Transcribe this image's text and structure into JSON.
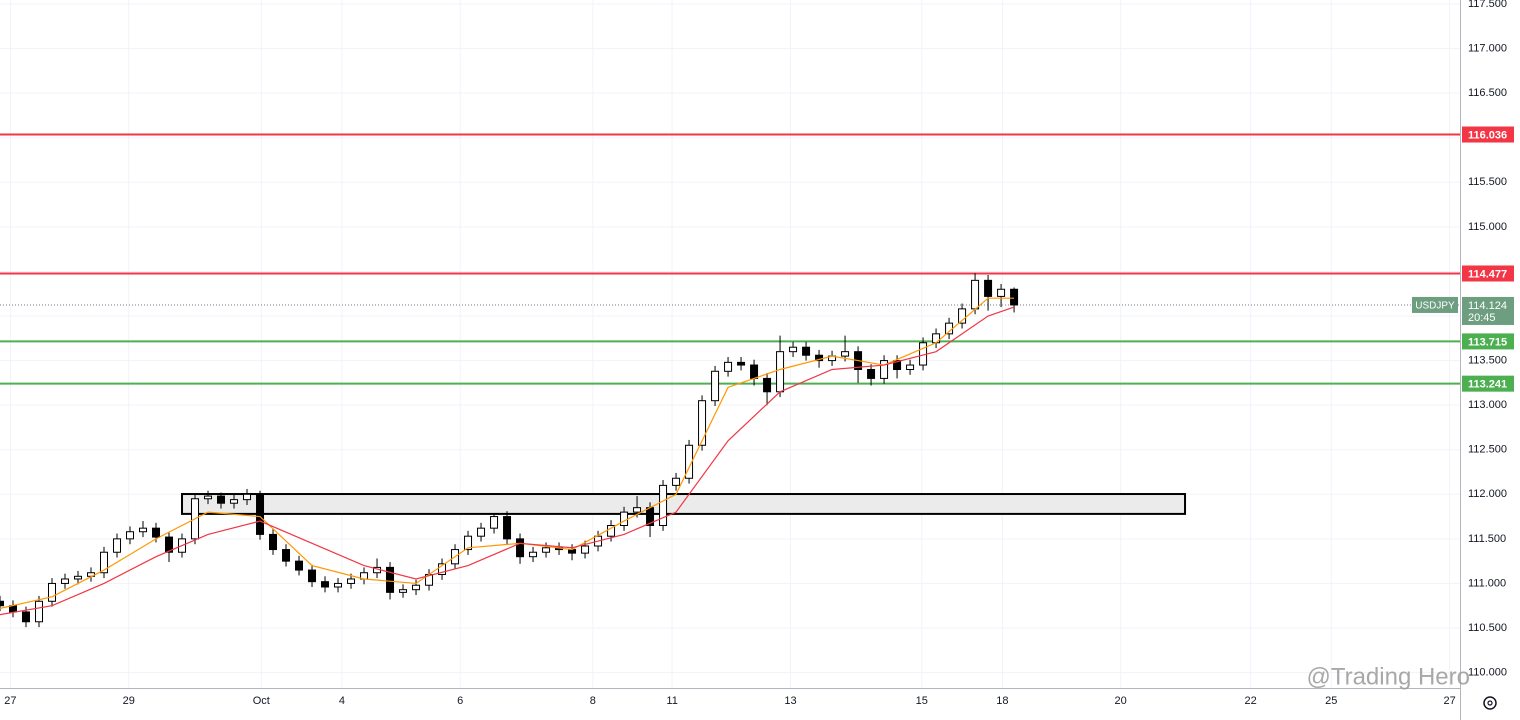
{
  "chart_data": {
    "type": "candlestick",
    "symbol": "USDJPY",
    "x": [
      0,
      1,
      2,
      3,
      4,
      5,
      6,
      7,
      8,
      9,
      10,
      11,
      12,
      13,
      14,
      15,
      16,
      17,
      18,
      19,
      20,
      21,
      22,
      23,
      24,
      25,
      26,
      27,
      28,
      29,
      30,
      31,
      32,
      33,
      34,
      35,
      36,
      37,
      38,
      39,
      40,
      41,
      42,
      43,
      44,
      45,
      46,
      47,
      48,
      49,
      50,
      51,
      52,
      53,
      54,
      55,
      56,
      57,
      58,
      59,
      60,
      61,
      62,
      63,
      64,
      65,
      66,
      67,
      68,
      69,
      70,
      71,
      72,
      73,
      74,
      75,
      76,
      77,
      78
    ],
    "open": [
      110.8,
      110.75,
      110.68,
      110.57,
      110.8,
      111.0,
      111.05,
      111.08,
      111.12,
      111.35,
      111.5,
      111.58,
      111.62,
      111.52,
      111.35,
      111.5,
      111.95,
      111.98,
      111.9,
      111.94,
      112.0,
      111.55,
      111.38,
      111.25,
      111.15,
      111.02,
      110.96,
      111.0,
      111.05,
      111.12,
      111.18,
      110.9,
      110.93,
      110.98,
      111.1,
      111.22,
      111.38,
      111.53,
      111.62,
      111.75,
      111.5,
      111.3,
      111.35,
      111.4,
      111.38,
      111.34,
      111.42,
      111.53,
      111.65,
      111.8,
      111.85,
      111.65,
      112.1,
      112.18,
      112.55,
      113.05,
      113.38,
      113.48,
      113.45,
      113.3,
      113.15,
      113.6,
      113.65,
      113.56,
      113.5,
      113.55,
      113.6,
      113.4,
      113.3,
      113.5,
      113.4,
      113.45,
      113.7,
      113.8,
      113.92,
      114.08,
      114.4,
      114.22,
      114.3
    ],
    "high": [
      110.86,
      110.81,
      110.74,
      110.86,
      111.06,
      111.11,
      111.14,
      111.18,
      111.41,
      111.56,
      111.64,
      111.7,
      111.68,
      111.58,
      111.56,
      112.01,
      112.04,
      112.02,
      112.0,
      112.06,
      112.04,
      111.61,
      111.44,
      111.31,
      111.21,
      111.08,
      111.06,
      111.11,
      111.18,
      111.28,
      111.24,
      110.99,
      111.04,
      111.16,
      111.28,
      111.44,
      111.59,
      111.68,
      111.79,
      111.81,
      111.56,
      111.41,
      111.46,
      111.46,
      111.44,
      111.48,
      111.59,
      111.71,
      111.86,
      111.98,
      111.91,
      112.16,
      112.24,
      112.61,
      113.11,
      113.44,
      113.54,
      113.54,
      113.51,
      113.36,
      113.78,
      113.71,
      113.71,
      113.62,
      113.61,
      113.78,
      113.66,
      113.46,
      113.56,
      113.56,
      113.51,
      113.76,
      113.86,
      113.98,
      114.14,
      114.48,
      114.46,
      114.36,
      114.32
    ],
    "low": [
      110.69,
      110.62,
      110.51,
      110.51,
      110.74,
      110.94,
      110.99,
      111.02,
      111.06,
      111.29,
      111.44,
      111.52,
      111.46,
      111.24,
      111.29,
      111.44,
      111.89,
      111.84,
      111.84,
      111.88,
      111.49,
      111.32,
      111.19,
      111.09,
      110.96,
      110.9,
      110.9,
      110.94,
      110.99,
      111.06,
      110.82,
      110.84,
      110.87,
      110.92,
      111.04,
      111.16,
      111.32,
      111.47,
      111.56,
      111.44,
      111.22,
      111.24,
      111.29,
      111.32,
      111.26,
      111.28,
      111.36,
      111.47,
      111.59,
      111.74,
      111.52,
      111.59,
      112.04,
      112.12,
      112.49,
      112.99,
      113.32,
      113.39,
      113.22,
      113.0,
      113.09,
      113.54,
      113.5,
      113.42,
      113.44,
      113.49,
      113.25,
      113.22,
      113.24,
      113.3,
      113.34,
      113.39,
      113.64,
      113.74,
      113.86,
      114.02,
      114.06,
      114.1,
      114.04
    ],
    "close": [
      110.75,
      110.68,
      110.57,
      110.8,
      111.0,
      111.05,
      111.08,
      111.12,
      111.35,
      111.5,
      111.58,
      111.62,
      111.52,
      111.35,
      111.5,
      111.95,
      111.98,
      111.9,
      111.94,
      112.0,
      111.55,
      111.38,
      111.25,
      111.15,
      111.02,
      110.96,
      111.0,
      111.05,
      111.12,
      111.18,
      110.9,
      110.93,
      110.98,
      111.1,
      111.22,
      111.38,
      111.53,
      111.62,
      111.75,
      111.5,
      111.3,
      111.35,
      111.4,
      111.38,
      111.34,
      111.42,
      111.53,
      111.65,
      111.8,
      111.85,
      111.65,
      112.1,
      112.18,
      112.55,
      113.05,
      113.38,
      113.48,
      113.45,
      113.3,
      113.15,
      113.6,
      113.65,
      113.56,
      113.5,
      113.55,
      113.6,
      113.4,
      113.3,
      113.5,
      113.4,
      113.45,
      113.7,
      113.8,
      113.92,
      114.08,
      114.4,
      114.22,
      114.3,
      114.124
    ],
    "up_color": "#ffffff",
    "down_color": "#000000",
    "lines": [
      {
        "color": "#ff9800",
        "x": [
          0,
          4,
          8,
          12,
          16,
          20,
          24,
          28,
          32,
          36,
          40,
          44,
          48,
          52,
          56,
          60,
          64,
          68,
          72,
          76,
          78
        ],
        "values": [
          110.72,
          110.85,
          111.15,
          111.5,
          111.8,
          111.75,
          111.2,
          111.05,
          111.0,
          111.4,
          111.45,
          111.38,
          111.7,
          112.0,
          113.2,
          113.4,
          113.55,
          113.45,
          113.7,
          114.2,
          114.2
        ]
      },
      {
        "color": "#f23645",
        "x": [
          0,
          4,
          8,
          12,
          16,
          20,
          24,
          28,
          32,
          36,
          40,
          44,
          48,
          52,
          56,
          60,
          64,
          68,
          72,
          76,
          78
        ],
        "values": [
          110.65,
          110.75,
          111.0,
          111.3,
          111.55,
          111.7,
          111.45,
          111.2,
          111.05,
          111.2,
          111.45,
          111.4,
          111.55,
          111.8,
          112.6,
          113.15,
          113.4,
          113.45,
          113.6,
          114.0,
          114.1
        ]
      }
    ],
    "levels": [
      {
        "value": 116.036,
        "color": "#f23645"
      },
      {
        "value": 114.477,
        "color": "#f23645"
      },
      {
        "value": 113.715,
        "color": "#4caf50"
      },
      {
        "value": 113.241,
        "color": "#4caf50"
      }
    ],
    "zones": [
      {
        "x": [
          14.0,
          91.15
        ],
        "y": [
          111.78,
          112.003
        ]
      }
    ],
    "last": {
      "value": 114.124,
      "label": "114.124",
      "countdown": "20:45",
      "color": "#6d9e80"
    },
    "ylim": [
      109.827,
      117.545
    ],
    "yticks": [
      {
        "value": 110,
        "label": "110.000"
      },
      {
        "value": 110.5,
        "label": "110.500"
      },
      {
        "value": 111,
        "label": "111.000"
      },
      {
        "value": 111.5,
        "label": "111.500"
      },
      {
        "value": 112,
        "label": "112.000"
      },
      {
        "value": 112.5,
        "label": "112.500"
      },
      {
        "value": 113,
        "label": "113.000"
      },
      {
        "value": 113.5,
        "label": "113.500"
      },
      {
        "value": 114,
        "label": "114.000"
      },
      {
        "value": 114.5,
        "label": "114.500"
      },
      {
        "value": 115,
        "label": "115.000"
      },
      {
        "value": 115.5,
        "label": "115.500"
      },
      {
        "value": 116,
        "label": "116.000"
      },
      {
        "value": 116.5,
        "label": "116.500"
      },
      {
        "value": 117,
        "label": "117.000"
      },
      {
        "value": 117.5,
        "label": "117.500"
      }
    ],
    "xlim": [
      0,
      112.3
    ],
    "xticks": [
      {
        "value": 0.8,
        "label": "27"
      },
      {
        "value": 9.9,
        "label": "29"
      },
      {
        "value": 20.1,
        "label": "Oct"
      },
      {
        "value": 26.3,
        "label": "4"
      },
      {
        "value": 35.4,
        "label": "6"
      },
      {
        "value": 45.6,
        "label": "8"
      },
      {
        "value": 51.7,
        "label": "11"
      },
      {
        "value": 60.8,
        "label": "13"
      },
      {
        "value": 70.9,
        "label": "15"
      },
      {
        "value": 77.1,
        "label": "18"
      },
      {
        "value": 86.2,
        "label": "20"
      },
      {
        "value": 96.2,
        "label": "22"
      },
      {
        "value": 102.4,
        "label": "25"
      },
      {
        "value": 111.5,
        "label": "27"
      }
    ],
    "grid": true
  },
  "watermark": "@Trading Hero"
}
